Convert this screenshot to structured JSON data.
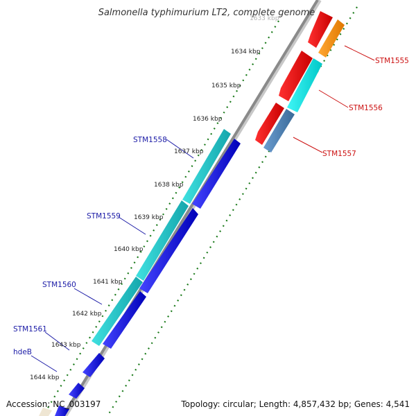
{
  "title": "Salmonella typhimurium LT2, complete genome",
  "accession_text": "Accession: NC_003197",
  "summary_text": "Topology: circular; Length: 4,857,432 bp; Genes: 4,541",
  "ticks": [
    {
      "label": "1633 kbp",
      "pos": 1633
    },
    {
      "label": "1634 kbp",
      "pos": 1634
    },
    {
      "label": "1635 kbp",
      "pos": 1635
    },
    {
      "label": "1636 kbp",
      "pos": 1636
    },
    {
      "label": "1637 kbp",
      "pos": 1637
    },
    {
      "label": "1638 kbp",
      "pos": 1638
    },
    {
      "label": "1639 kbp",
      "pos": 1639
    },
    {
      "label": "1640 kbp",
      "pos": 1640
    },
    {
      "label": "1641 kbp",
      "pos": 1641
    },
    {
      "label": "1642 kbp",
      "pos": 1642
    },
    {
      "label": "1643 kbp",
      "pos": 1643
    },
    {
      "label": "1644 kbp",
      "pos": 1644
    }
  ],
  "gene_labels": [
    {
      "text": "STM1555",
      "strand": "reverse"
    },
    {
      "text": "STM1556",
      "strand": "reverse"
    },
    {
      "text": "STM1557",
      "strand": "reverse"
    },
    {
      "text": "STM1558",
      "strand": "forward"
    },
    {
      "text": "STM1559",
      "strand": "forward"
    },
    {
      "text": "STM1560",
      "strand": "forward"
    },
    {
      "text": "STM1561",
      "strand": "forward"
    },
    {
      "text": "hdeB",
      "strand": "forward"
    }
  ],
  "colors": {
    "forward_cds": "#0000ee",
    "forward_feature": "#19c2c8",
    "reverse_cds": "#ee0000",
    "reverse_feature_cyan": "#00e5e5",
    "reverse_feature_orange": "#ff8c00",
    "reverse_feature_steel": "#4a7fb0",
    "backbone": "#8a8a8a",
    "ticks": "#1a7a1a"
  }
}
